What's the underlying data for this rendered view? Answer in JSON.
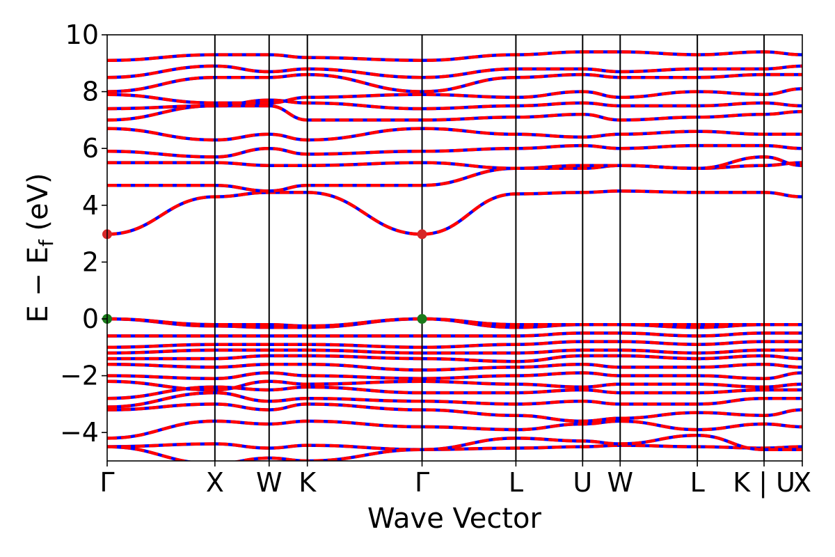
{
  "chart_data": {
    "type": "line",
    "xlabel": "Wave Vector",
    "ylabel": "E − E",
    "ylabel_sub": "f",
    "ylabel_unit": " (eV)",
    "ylim": [
      -5,
      10
    ],
    "yticks": [
      -4,
      -2,
      0,
      2,
      4,
      6,
      8,
      10
    ],
    "ytick_labels": [
      "−4",
      "−2",
      "0",
      "2",
      "4",
      "6",
      "8",
      "10"
    ],
    "xlim": [
      0,
      1
    ],
    "kpoints": [
      {
        "label": "Γ",
        "x": 0.0
      },
      {
        "label": "X",
        "x": 0.155
      },
      {
        "label": "W",
        "x": 0.233
      },
      {
        "label": "K",
        "x": 0.288
      },
      {
        "label": "Γ",
        "x": 0.453
      },
      {
        "label": "L",
        "x": 0.588
      },
      {
        "label": "U",
        "x": 0.684
      },
      {
        "label": "W",
        "x": 0.738
      },
      {
        "label": "L",
        "x": 0.849
      },
      {
        "label": "K | U",
        "x": 0.945
      },
      {
        "label": "X",
        "x": 1.0
      }
    ],
    "spin_colors": {
      "up": "#ff0000",
      "down": "#0000ff"
    },
    "markers": [
      {
        "name": "cbm",
        "color": "#d62728",
        "points": [
          [
            0.0,
            2.98
          ],
          [
            0.453,
            2.98
          ]
        ]
      },
      {
        "name": "vbm",
        "color": "#1a7a1a",
        "points": [
          [
            0.0,
            0.0
          ],
          [
            0.453,
            0.0
          ]
        ]
      }
    ],
    "bands": [
      [
        -4.5,
        -4.4,
        -4.55,
        -4.45,
        -4.6,
        -4.55,
        -4.5,
        -4.45,
        -4.5,
        -4.55,
        -4.5
      ],
      [
        -4.5,
        -5.1,
        -4.9,
        -5.0,
        -4.6,
        -4.2,
        -4.3,
        -4.4,
        -4.1,
        -4.6,
        -4.6
      ],
      [
        -4.2,
        -3.6,
        -3.7,
        -3.6,
        -3.8,
        -3.9,
        -3.7,
        -3.6,
        -3.9,
        -3.7,
        -3.8
      ],
      [
        -3.2,
        -3.0,
        -3.2,
        -3.0,
        -3.2,
        -3.4,
        -3.6,
        -3.5,
        -3.3,
        -3.4,
        -3.2
      ],
      [
        -3.1,
        -2.6,
        -2.9,
        -2.8,
        -2.9,
        -3.0,
        -2.9,
        -3.0,
        -3.0,
        -2.8,
        -2.8
      ],
      [
        -2.8,
        -2.4,
        -2.5,
        -2.4,
        -2.6,
        -2.6,
        -2.5,
        -2.6,
        -2.6,
        -2.5,
        -2.5
      ],
      [
        -2.2,
        -2.5,
        -2.2,
        -2.3,
        -2.2,
        -2.3,
        -2.4,
        -2.3,
        -2.3,
        -2.4,
        -2.3
      ],
      [
        -2.0,
        -2.1,
        -1.9,
        -2.0,
        -2.1,
        -2.0,
        -1.9,
        -2.0,
        -2.0,
        -2.1,
        -1.9
      ],
      [
        -1.6,
        -1.7,
        -1.6,
        -1.6,
        -1.8,
        -1.7,
        -1.6,
        -1.7,
        -1.7,
        -1.6,
        -1.7
      ],
      [
        -1.4,
        -1.4,
        -1.3,
        -1.3,
        -1.4,
        -1.5,
        -1.3,
        -1.3,
        -1.4,
        -1.3,
        -1.4
      ],
      [
        -1.2,
        -1.1,
        -1.1,
        -1.1,
        -1.2,
        -1.2,
        -1.1,
        -1.1,
        -1.2,
        -1.1,
        -1.1
      ],
      [
        -1.0,
        -0.9,
        -0.9,
        -0.9,
        -1.0,
        -0.9,
        -0.8,
        -0.8,
        -0.9,
        -0.8,
        -0.8
      ],
      [
        -0.6,
        -0.6,
        -0.6,
        -0.6,
        -0.6,
        -0.6,
        -0.5,
        -0.5,
        -0.6,
        -0.5,
        -0.5
      ],
      [
        0.0,
        -0.25,
        -0.3,
        -0.3,
        0.0,
        -0.3,
        -0.2,
        -0.2,
        -0.3,
        -0.2,
        -0.2
      ],
      [
        0.0,
        -0.2,
        -0.2,
        -0.25,
        0.0,
        -0.2,
        -0.2,
        -0.2,
        -0.2,
        -0.2,
        -0.2
      ],
      [
        2.98,
        4.3,
        4.45,
        4.45,
        2.98,
        4.4,
        4.45,
        4.5,
        4.45,
        4.45,
        4.3
      ],
      [
        4.7,
        4.7,
        4.5,
        4.7,
        4.7,
        5.3,
        5.3,
        5.4,
        5.3,
        5.4,
        5.5
      ],
      [
        5.5,
        5.5,
        5.4,
        5.4,
        5.5,
        5.3,
        5.4,
        5.4,
        5.3,
        5.7,
        5.4
      ],
      [
        5.9,
        5.7,
        6.0,
        5.8,
        5.9,
        6.0,
        6.1,
        6.0,
        6.1,
        6.1,
        6.0
      ],
      [
        6.7,
        6.3,
        6.5,
        6.3,
        6.7,
        6.5,
        6.4,
        6.5,
        6.6,
        6.5,
        6.5
      ],
      [
        7.0,
        7.5,
        7.5,
        7.0,
        7.0,
        7.1,
        7.2,
        7.0,
        7.1,
        7.2,
        7.3
      ],
      [
        7.4,
        7.5,
        7.7,
        7.6,
        7.4,
        7.5,
        7.6,
        7.5,
        7.5,
        7.6,
        7.5
      ],
      [
        7.9,
        7.6,
        7.6,
        7.8,
        7.9,
        7.8,
        8.0,
        7.8,
        8.0,
        7.9,
        8.1
      ],
      [
        8.0,
        8.5,
        8.5,
        8.6,
        8.0,
        8.5,
        8.6,
        8.5,
        8.5,
        8.6,
        8.6
      ],
      [
        8.5,
        8.9,
        8.7,
        8.8,
        8.5,
        8.8,
        8.8,
        8.7,
        8.8,
        8.8,
        8.9
      ],
      [
        9.1,
        9.3,
        9.3,
        9.2,
        9.1,
        9.3,
        9.4,
        9.4,
        9.3,
        9.4,
        9.3
      ]
    ]
  }
}
